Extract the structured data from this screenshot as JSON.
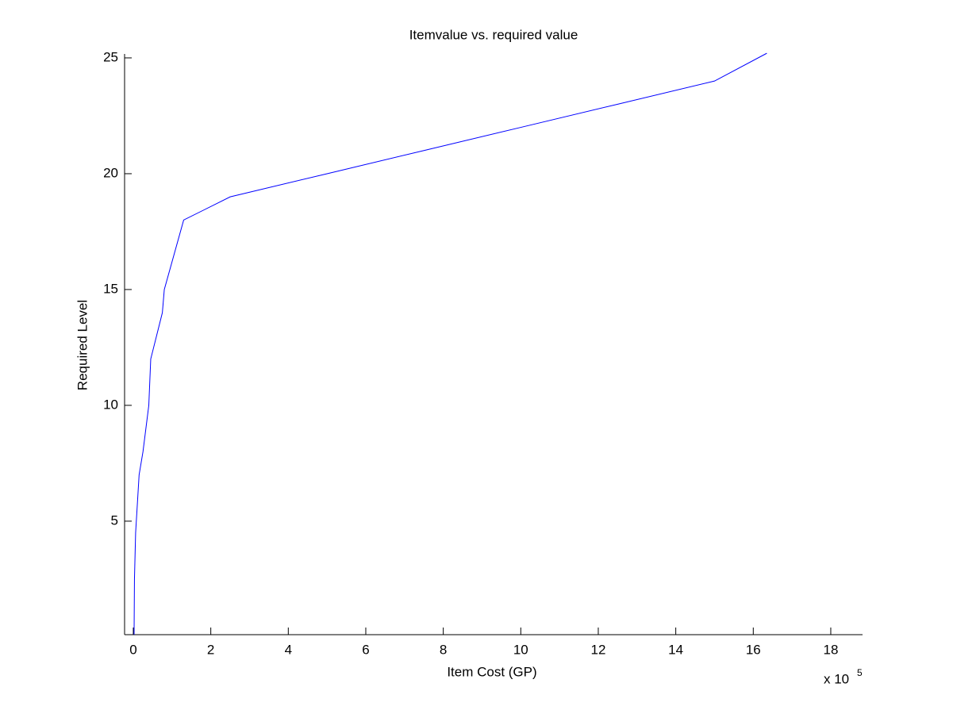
{
  "chart_data": {
    "type": "line",
    "title": "Itemvalue vs. required value",
    "x_label": "Item Cost (GP)",
    "y_label": "Required Level",
    "x_multiplier": "x 10",
    "x_multiplier_exponent": "5",
    "x": [
      0.02,
      0.03,
      0.06,
      0.15,
      0.25,
      0.4,
      0.45,
      0.6,
      0.75,
      0.8,
      1.3,
      2.5,
      5,
      7.5,
      10,
      12.5,
      15,
      16.35
    ],
    "series": [
      {
        "color": "#0000ff",
        "values": [
          0.1,
          2.5,
          4.5,
          7,
          8,
          10,
          12,
          13,
          14,
          15,
          18,
          19,
          20,
          21,
          22,
          23,
          24,
          25.2
        ]
      }
    ],
    "xlim": [
      -0.225,
      18.82
    ],
    "ylim": [
      0.1,
      25.17
    ],
    "xticks": [
      0,
      2,
      4,
      6,
      8,
      10,
      12,
      14,
      16,
      18
    ],
    "yticks": [
      5,
      10,
      15,
      20,
      25
    ]
  }
}
